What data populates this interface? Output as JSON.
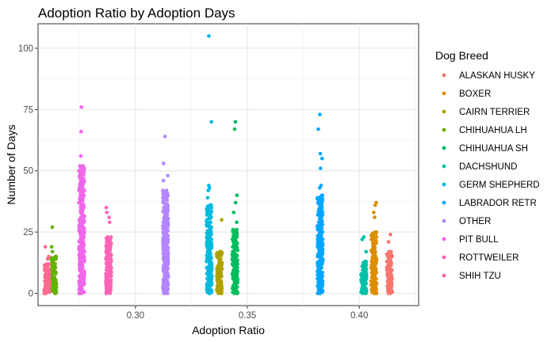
{
  "chart_data": {
    "type": "scatter",
    "title": "Adoption Ratio by Adoption Days",
    "xlabel": "Adoption Ratio",
    "ylabel": "Number of Days",
    "xlim": [
      0.2565,
      0.4265
    ],
    "ylim": [
      -5,
      110
    ],
    "x_ticks": [
      0.3,
      0.35,
      0.4
    ],
    "x_tick_labels": [
      "0.30",
      "0.35",
      "0.40"
    ],
    "y_ticks": [
      0,
      25,
      50,
      75,
      100
    ],
    "y_tick_labels": [
      "0",
      "25",
      "50",
      "75",
      "100"
    ],
    "grid": true,
    "legend_title": "Dog Breed",
    "legend_position": "right",
    "series": [
      {
        "name": "ALASKAN HUSKY",
        "color": "#F8766D",
        "x": 0.4135,
        "max": 24,
        "dense_max": 17,
        "outliers": [
          24,
          21
        ]
      },
      {
        "name": "BOXER",
        "color": "#DB8E00",
        "x": 0.4065,
        "max": 37,
        "dense_max": 25,
        "outliers": [
          37,
          36,
          33,
          31
        ]
      },
      {
        "name": "CAIRN TERRIER",
        "color": "#AEA200",
        "x": 0.3375,
        "max": 30,
        "dense_max": 17,
        "outliers": [
          30
        ]
      },
      {
        "name": "CHIHUAHUA LH",
        "color": "#64B200",
        "x": 0.2635,
        "max": 27,
        "dense_max": 15,
        "outliers": [
          27,
          19,
          17
        ]
      },
      {
        "name": "CHIHUAHUA SH",
        "color": "#00BD5C",
        "x": 0.3445,
        "max": 70,
        "dense_max": 26,
        "outliers": [
          70,
          67,
          40,
          37,
          33,
          29
        ]
      },
      {
        "name": "DACHSHUND",
        "color": "#00C1A7",
        "x": 0.402,
        "max": 23,
        "dense_max": 13,
        "outliers": [
          23,
          22,
          17
        ]
      },
      {
        "name": "GERM SHEPHERD",
        "color": "#00BADE",
        "x": 0.333,
        "max": 105,
        "dense_max": 36,
        "outliers": [
          105,
          70,
          44,
          43,
          42,
          39
        ]
      },
      {
        "name": "LABRADOR RETR",
        "color": "#00A6FF",
        "x": 0.3825,
        "max": 73,
        "dense_max": 40,
        "outliers": [
          73,
          67,
          57,
          55,
          51,
          44,
          43
        ]
      },
      {
        "name": "OTHER",
        "color": "#B385FF",
        "x": 0.3135,
        "max": 64,
        "dense_max": 42,
        "outliers": [
          64,
          53,
          48,
          46
        ]
      },
      {
        "name": "PIT BULL",
        "color": "#EF67EB",
        "x": 0.276,
        "max": 76,
        "dense_max": 52,
        "outliers": [
          76,
          66,
          56
        ]
      },
      {
        "name": "ROTTWEILER",
        "color": "#FF63B6",
        "x": 0.288,
        "max": 35,
        "dense_max": 23,
        "outliers": [
          35,
          33,
          31,
          29
        ]
      },
      {
        "name": "SHIH TZU",
        "color": "#FF6C91",
        "x": 0.2605,
        "max": 19,
        "dense_max": 12,
        "outliers": [
          19,
          15,
          14
        ]
      }
    ]
  }
}
